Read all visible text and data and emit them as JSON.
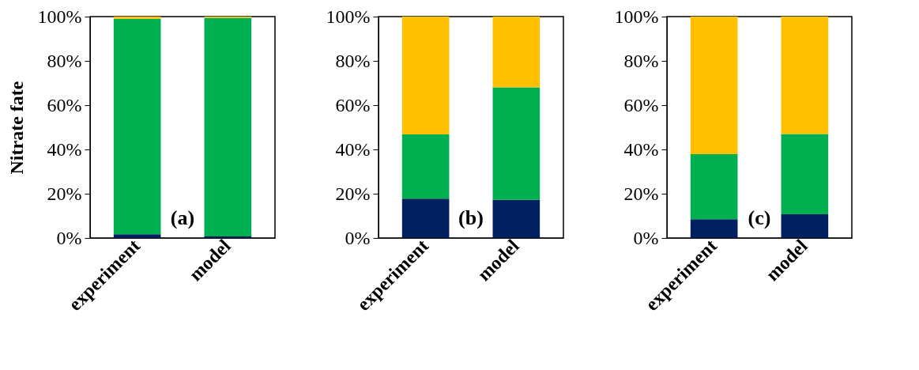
{
  "chart_data": [
    {
      "type": "bar",
      "stacked": true,
      "ylabel": "Nitrate fate",
      "categories": [
        "experiment",
        "model"
      ],
      "annotations": [
        "(a)"
      ],
      "ylim": [
        0,
        100
      ],
      "yticks": [
        {
          "value": 0,
          "label": "0%"
        },
        {
          "value": 20,
          "label": "20%"
        },
        {
          "value": 40,
          "label": "40%"
        },
        {
          "value": 60,
          "label": "60%"
        },
        {
          "value": 80,
          "label": "80%"
        },
        {
          "value": 100,
          "label": "100%"
        }
      ],
      "grid": false,
      "legend": false,
      "series": [
        {
          "color": "#002060",
          "values": [
            1.7,
            0.7
          ]
        },
        {
          "color": "#00b050",
          "values": [
            97.3,
            98.8
          ]
        },
        {
          "color": "#ffc000",
          "values": [
            1,
            0.5
          ]
        }
      ]
    },
    {
      "type": "bar",
      "stacked": true,
      "categories": [
        "experiment",
        "model"
      ],
      "annotations": [
        "(b)"
      ],
      "ylim": [
        0,
        100
      ],
      "yticks": [
        {
          "value": 0,
          "label": "0%"
        },
        {
          "value": 20,
          "label": "20%"
        },
        {
          "value": 40,
          "label": "40%"
        },
        {
          "value": 60,
          "label": "60%"
        },
        {
          "value": 80,
          "label": "80%"
        },
        {
          "value": 100,
          "label": "100%"
        }
      ],
      "grid": false,
      "legend": false,
      "series": [
        {
          "color": "#002060",
          "values": [
            17.8,
            17.2
          ]
        },
        {
          "color": "#00b050",
          "values": [
            29,
            50.8
          ]
        },
        {
          "color": "#ffc000",
          "values": [
            53.2,
            32
          ]
        }
      ]
    },
    {
      "type": "bar",
      "stacked": true,
      "categories": [
        "experiment",
        "model"
      ],
      "annotations": [
        "(c)"
      ],
      "ylim": [
        0,
        100
      ],
      "yticks": [
        {
          "value": 0,
          "label": "0%"
        },
        {
          "value": 20,
          "label": "20%"
        },
        {
          "value": 40,
          "label": "40%"
        },
        {
          "value": 60,
          "label": "60%"
        },
        {
          "value": 80,
          "label": "80%"
        },
        {
          "value": 100,
          "label": "100%"
        }
      ],
      "grid": false,
      "legend": false,
      "series": [
        {
          "color": "#002060",
          "values": [
            8.5,
            10.7
          ]
        },
        {
          "color": "#00b050",
          "values": [
            29.4,
            36.3
          ]
        },
        {
          "color": "#ffc000",
          "values": [
            62.1,
            53
          ]
        }
      ]
    }
  ]
}
